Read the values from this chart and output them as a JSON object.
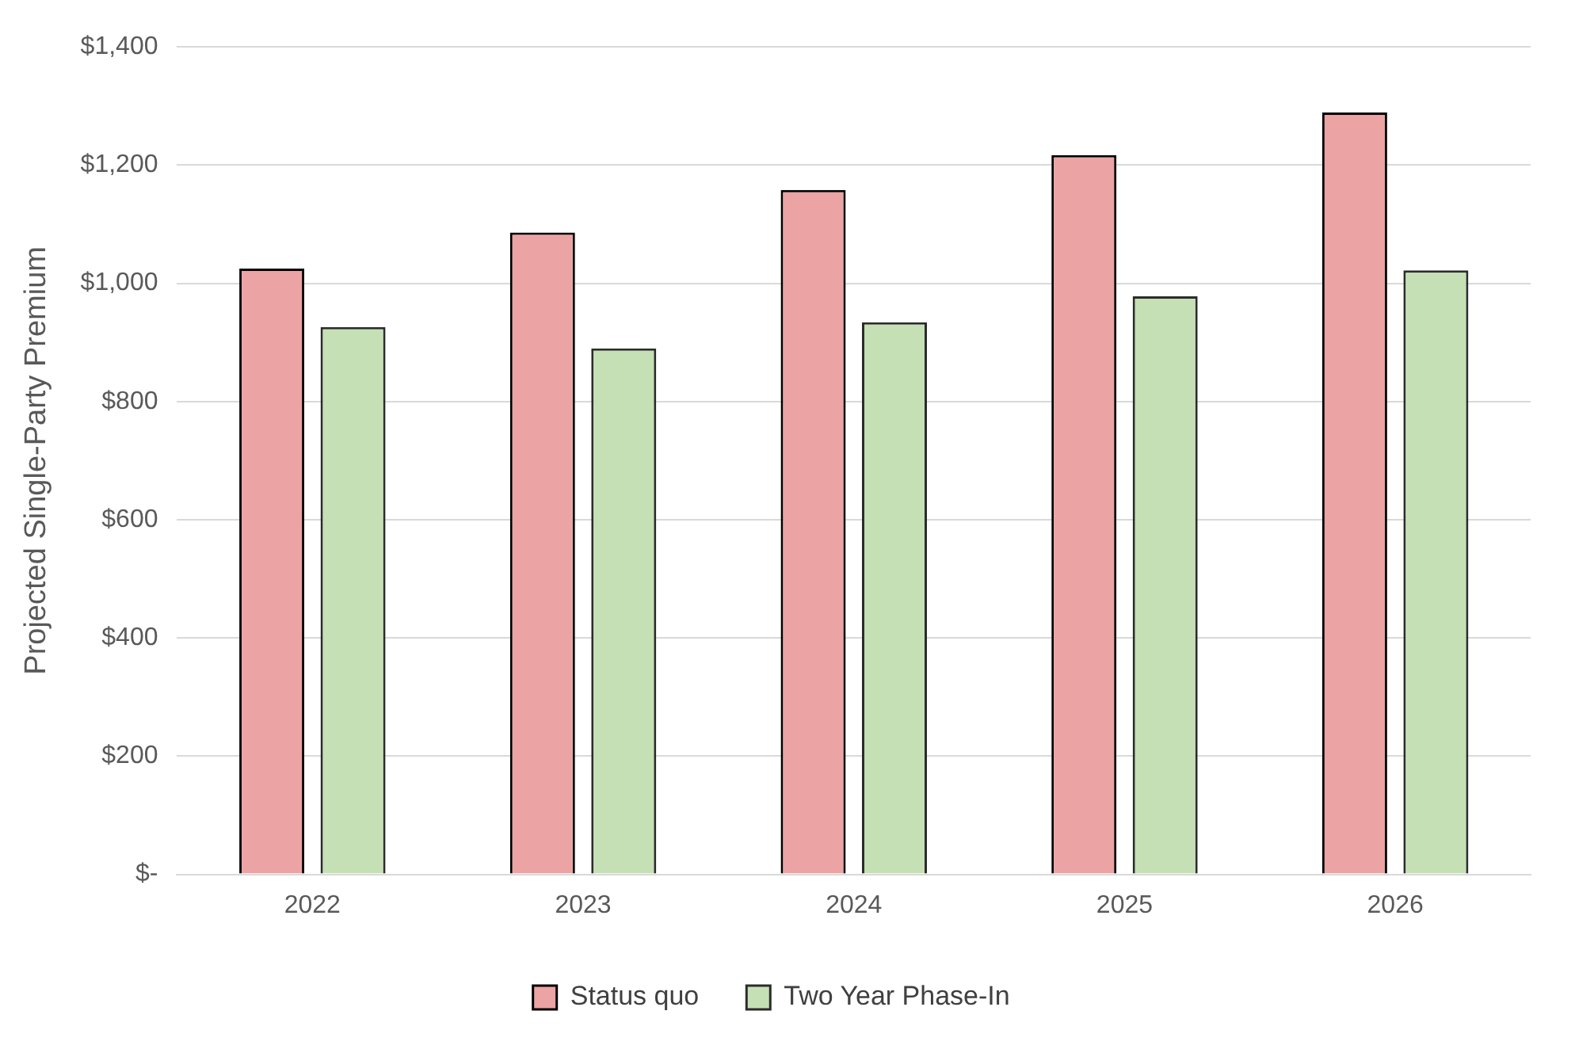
{
  "chart_data": {
    "type": "bar",
    "ylabel": "Projected Single-Party Premium",
    "categories": [
      "2022",
      "2023",
      "2024",
      "2025",
      "2026"
    ],
    "series": [
      {
        "name": "Status quo",
        "color": "#eba3a3",
        "values": [
          1025,
          1086,
          1158,
          1217,
          1289
        ]
      },
      {
        "name": "Two Year Phase-In",
        "color": "#c5e0b4",
        "values": [
          926,
          890,
          934,
          978,
          1022
        ]
      }
    ],
    "ylim": [
      0,
      1400
    ],
    "yticks": [
      {
        "value": 0,
        "label": "$-"
      },
      {
        "value": 200,
        "label": "$200"
      },
      {
        "value": 400,
        "label": "$400"
      },
      {
        "value": 600,
        "label": "$600"
      },
      {
        "value": 800,
        "label": "$800"
      },
      {
        "value": 1000,
        "label": "$1,000"
      },
      {
        "value": 1200,
        "label": "$1,200"
      },
      {
        "value": 1400,
        "label": "$1,400"
      }
    ],
    "grid": "y",
    "legend": "bottom"
  }
}
